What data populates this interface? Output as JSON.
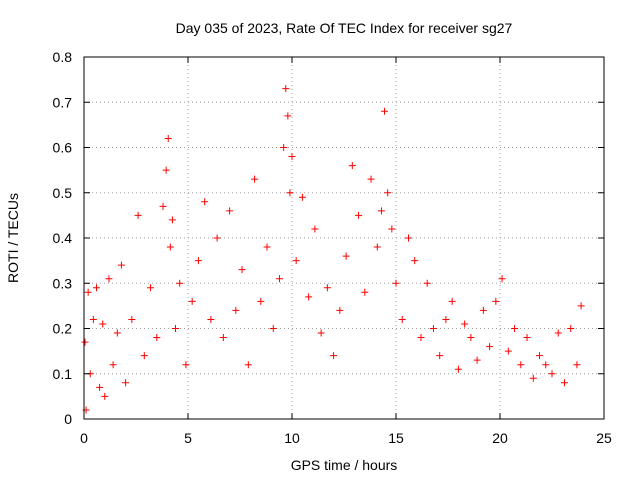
{
  "chart_data": {
    "type": "scatter",
    "title": "Day 035 of 2023, Rate Of TEC Index for receiver sg27",
    "xlabel": "GPS time / hours",
    "ylabel": "ROTI / TECUs",
    "xlim": [
      0,
      25
    ],
    "ylim": [
      0,
      0.8
    ],
    "x_ticks": [
      0,
      5,
      10,
      15,
      20,
      25
    ],
    "x_tick_labels": [
      "0",
      "5",
      "10",
      "15",
      "20",
      "25"
    ],
    "y_ticks": [
      0,
      0.1,
      0.2,
      0.3,
      0.4,
      0.5,
      0.6,
      0.7,
      0.8
    ],
    "y_tick_labels": [
      "0",
      "0.1",
      "0.2",
      "0.3",
      "0.4",
      "0.5",
      "0.6",
      "0.7",
      "0.8"
    ],
    "grid": true,
    "marker": "plus",
    "color": "#ff0000",
    "series": [
      {
        "name": "ROTI",
        "x": [
          0.05,
          0.1,
          0.2,
          0.3,
          0.45,
          0.6,
          0.75,
          0.9,
          1.0,
          1.2,
          1.4,
          1.6,
          1.8,
          2.0,
          2.3,
          2.6,
          2.9,
          3.2,
          3.5,
          3.8,
          3.95,
          4.05,
          4.15,
          4.25,
          4.4,
          4.6,
          4.9,
          5.2,
          5.5,
          5.8,
          6.1,
          6.4,
          6.7,
          7.0,
          7.3,
          7.6,
          7.9,
          8.2,
          8.5,
          8.8,
          9.1,
          9.4,
          9.6,
          9.7,
          9.8,
          9.9,
          10.0,
          10.2,
          10.5,
          10.8,
          11.1,
          11.4,
          11.7,
          12.0,
          12.3,
          12.6,
          12.9,
          13.2,
          13.5,
          13.8,
          14.1,
          14.3,
          14.45,
          14.6,
          14.8,
          15.0,
          15.3,
          15.6,
          15.9,
          16.2,
          16.5,
          16.8,
          17.1,
          17.4,
          17.7,
          18.0,
          18.3,
          18.6,
          18.9,
          19.2,
          19.5,
          19.8,
          20.1,
          20.4,
          20.7,
          21.0,
          21.3,
          21.6,
          21.9,
          22.2,
          22.5,
          22.8,
          23.1,
          23.4,
          23.7,
          23.9
        ],
        "y": [
          0.17,
          0.02,
          0.28,
          0.1,
          0.22,
          0.29,
          0.07,
          0.21,
          0.05,
          0.31,
          0.12,
          0.19,
          0.34,
          0.08,
          0.22,
          0.45,
          0.14,
          0.29,
          0.18,
          0.47,
          0.55,
          0.62,
          0.38,
          0.44,
          0.2,
          0.3,
          0.12,
          0.26,
          0.35,
          0.48,
          0.22,
          0.4,
          0.18,
          0.46,
          0.24,
          0.33,
          0.12,
          0.53,
          0.26,
          0.38,
          0.2,
          0.31,
          0.6,
          0.73,
          0.67,
          0.5,
          0.58,
          0.35,
          0.49,
          0.27,
          0.42,
          0.19,
          0.29,
          0.14,
          0.24,
          0.36,
          0.56,
          0.45,
          0.28,
          0.53,
          0.38,
          0.46,
          0.68,
          0.5,
          0.42,
          0.3,
          0.22,
          0.4,
          0.35,
          0.18,
          0.3,
          0.2,
          0.14,
          0.22,
          0.26,
          0.11,
          0.21,
          0.18,
          0.13,
          0.24,
          0.16,
          0.26,
          0.31,
          0.15,
          0.2,
          0.12,
          0.18,
          0.09,
          0.14,
          0.12,
          0.1,
          0.19,
          0.08,
          0.2,
          0.12,
          0.25
        ]
      }
    ]
  }
}
